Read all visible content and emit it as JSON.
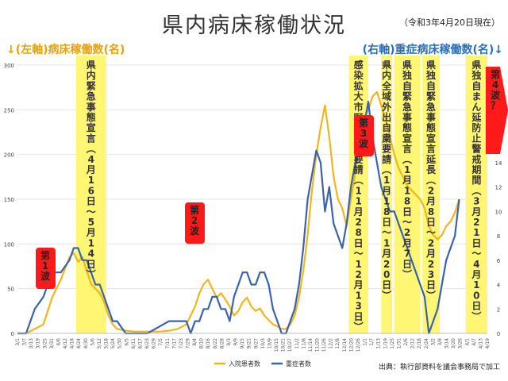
{
  "title": "県内病床稼働状況",
  "as_of": "（令和3年4月20日現在）",
  "left_axis_title": "↓(左軸)病床稼働数(名)",
  "right_axis_title": "(右軸)重症病床稼働数(名)↓",
  "source": "出典：執行部資料を議会事務局で加工",
  "colors": {
    "hospitalized": "#f0b61b",
    "severe": "#3b63ad",
    "band": "#fff56b",
    "wave": "#ff1a1a"
  },
  "chart_data": {
    "type": "line",
    "x_axis_type": "date",
    "x_ticks": [
      "3/1",
      "3/7",
      "3/13",
      "3/19",
      "3/25",
      "3/31",
      "4/6",
      "4/12",
      "4/18",
      "4/24",
      "4/30",
      "5/6",
      "5/12",
      "5/18",
      "5/24",
      "5/30",
      "6/5",
      "6/11",
      "6/17",
      "6/23",
      "6/29",
      "7/5",
      "7/11",
      "7/17",
      "7/23",
      "7/29",
      "8/4",
      "8/10",
      "8/16",
      "8/22",
      "8/28",
      "9/3",
      "9/9",
      "9/15",
      "9/21",
      "9/27",
      "10/3",
      "10/9",
      "10/15",
      "10/21",
      "10/27",
      "11/2",
      "11/8",
      "11/14",
      "11/20",
      "11/26",
      "12/2",
      "12/8",
      "12/14",
      "12/20",
      "12/26",
      "1/1",
      "1/7",
      "1/13",
      "1/19",
      "1/25",
      "1/31",
      "2/6",
      "2/12",
      "2/18",
      "2/24",
      "3/2",
      "3/8",
      "3/14",
      "3/20",
      "3/26",
      "4/1",
      "4/7",
      "4/13",
      "4/19"
    ],
    "left_axis": {
      "ylim": [
        0,
        300
      ],
      "ticks": [
        0,
        50,
        100,
        150,
        200,
        250,
        300
      ]
    },
    "right_axis": {
      "ylim": [
        0,
        22
      ],
      "ticks": [
        0,
        2,
        4,
        6,
        8,
        10,
        12,
        14,
        16,
        18,
        20
      ]
    },
    "series": [
      {
        "name": "入院患者数",
        "axis": "left",
        "values": [
          [
            0,
            0
          ],
          [
            2,
            0
          ],
          [
            4,
            5
          ],
          [
            6,
            10
          ],
          [
            8,
            40
          ],
          [
            10,
            60
          ],
          [
            12,
            85
          ],
          [
            13,
            90
          ],
          [
            14,
            80
          ],
          [
            15,
            85
          ],
          [
            16,
            70
          ],
          [
            17,
            55
          ],
          [
            18,
            50
          ],
          [
            19,
            45
          ],
          [
            20,
            35
          ],
          [
            21,
            20
          ],
          [
            22,
            10
          ],
          [
            23,
            5
          ],
          [
            25,
            3
          ],
          [
            27,
            2
          ],
          [
            29,
            2
          ],
          [
            31,
            2
          ],
          [
            33,
            2
          ],
          [
            35,
            3
          ],
          [
            37,
            5
          ],
          [
            39,
            10
          ],
          [
            40,
            20
          ],
          [
            41,
            30
          ],
          [
            42,
            45
          ],
          [
            43,
            55
          ],
          [
            44,
            60
          ],
          [
            45,
            50
          ],
          [
            46,
            40
          ],
          [
            47,
            45
          ],
          [
            48,
            38
          ],
          [
            49,
            30
          ],
          [
            50,
            20
          ],
          [
            51,
            25
          ],
          [
            52,
            35
          ],
          [
            53,
            40
          ],
          [
            54,
            30
          ],
          [
            55,
            25
          ],
          [
            56,
            28
          ],
          [
            57,
            20
          ],
          [
            58,
            15
          ],
          [
            59,
            10
          ],
          [
            60,
            8
          ],
          [
            61,
            5
          ],
          [
            62,
            5
          ],
          [
            63,
            10
          ],
          [
            64,
            20
          ],
          [
            65,
            40
          ],
          [
            66,
            70
          ],
          [
            67,
            110
          ],
          [
            68,
            160
          ],
          [
            69,
            200
          ],
          [
            70,
            230
          ],
          [
            71,
            255
          ],
          [
            72,
            220
          ],
          [
            73,
            175
          ],
          [
            74,
            150
          ],
          [
            75,
            140
          ],
          [
            76,
            120
          ],
          [
            77,
            150
          ],
          [
            78,
            180
          ],
          [
            79,
            220
          ],
          [
            80,
            240
          ],
          [
            81,
            250
          ],
          [
            82,
            265
          ],
          [
            83,
            270
          ],
          [
            84,
            255
          ],
          [
            85,
            240
          ],
          [
            86,
            220
          ],
          [
            87,
            200
          ],
          [
            88,
            185
          ],
          [
            89,
            175
          ],
          [
            90,
            165
          ],
          [
            91,
            160
          ],
          [
            92,
            155
          ],
          [
            93,
            150
          ],
          [
            94,
            140
          ],
          [
            95,
            120
          ],
          [
            96,
            110
          ],
          [
            97,
            105
          ],
          [
            98,
            110
          ],
          [
            99,
            120
          ],
          [
            100,
            125
          ],
          [
            101,
            135
          ],
          [
            102,
            150
          ]
        ]
      },
      {
        "name": "重症者数",
        "axis": "right",
        "values": [
          [
            0,
            0
          ],
          [
            2,
            0
          ],
          [
            4,
            2
          ],
          [
            6,
            3
          ],
          [
            8,
            5
          ],
          [
            10,
            5
          ],
          [
            12,
            6
          ],
          [
            13,
            7
          ],
          [
            14,
            7
          ],
          [
            15,
            6
          ],
          [
            16,
            6
          ],
          [
            17,
            5
          ],
          [
            18,
            4
          ],
          [
            19,
            4
          ],
          [
            20,
            3
          ],
          [
            21,
            2
          ],
          [
            22,
            1
          ],
          [
            23,
            1
          ],
          [
            25,
            0
          ],
          [
            30,
            0
          ],
          [
            35,
            1
          ],
          [
            37,
            1
          ],
          [
            39,
            1
          ],
          [
            40,
            0
          ],
          [
            41,
            1
          ],
          [
            42,
            1
          ],
          [
            43,
            2
          ],
          [
            44,
            2
          ],
          [
            45,
            3
          ],
          [
            46,
            3
          ],
          [
            47,
            2
          ],
          [
            48,
            2
          ],
          [
            49,
            1
          ],
          [
            50,
            3
          ],
          [
            51,
            4
          ],
          [
            52,
            5
          ],
          [
            53,
            5
          ],
          [
            54,
            4
          ],
          [
            55,
            4
          ],
          [
            56,
            5
          ],
          [
            57,
            5
          ],
          [
            58,
            4
          ],
          [
            59,
            2
          ],
          [
            60,
            1
          ],
          [
            61,
            0
          ],
          [
            62,
            0
          ],
          [
            63,
            1
          ],
          [
            64,
            2
          ],
          [
            65,
            4
          ],
          [
            66,
            7
          ],
          [
            67,
            11
          ],
          [
            68,
            13
          ],
          [
            69,
            15
          ],
          [
            70,
            14
          ],
          [
            71,
            10
          ],
          [
            72,
            12
          ],
          [
            73,
            9
          ],
          [
            74,
            8
          ],
          [
            75,
            7
          ],
          [
            76,
            9
          ],
          [
            77,
            12
          ],
          [
            78,
            14
          ],
          [
            79,
            16
          ],
          [
            80,
            17
          ],
          [
            81,
            19
          ],
          [
            82,
            16
          ],
          [
            83,
            14
          ],
          [
            84,
            12
          ],
          [
            85,
            11
          ],
          [
            86,
            10
          ],
          [
            87,
            10
          ],
          [
            88,
            9
          ],
          [
            89,
            8
          ],
          [
            90,
            7
          ],
          [
            91,
            6
          ],
          [
            92,
            5
          ],
          [
            93,
            4
          ],
          [
            94,
            3
          ],
          [
            95,
            0
          ],
          [
            96,
            1
          ],
          [
            97,
            2
          ],
          [
            98,
            4
          ],
          [
            99,
            6
          ],
          [
            100,
            7
          ],
          [
            101,
            8
          ],
          [
            102,
            11
          ]
        ]
      }
    ],
    "legend": [
      "入院患者数",
      "重症者数"
    ],
    "legend_position": "bottom",
    "annotations": {
      "bands": [
        {
          "text": "県内緊急事態宣言",
          "period": "（4月16日～5月14日）"
        },
        {
          "text": "感染拡大市町村自粛要請",
          "period": "（11月28日～12月13日）"
        },
        {
          "text": "県内全域外出自粛要請",
          "period": "（1月18日～1月20日）"
        },
        {
          "text": "県独自緊急事態宣言",
          "period": "（1月18日～2月7日）"
        },
        {
          "text": "県独自緊急事態宣言延長",
          "period": "（2月8日～2月23日）"
        },
        {
          "text": "県独自まん延防止警戒期間",
          "period": "（3月21日～4月10日）"
        }
      ],
      "waves": [
        "第1波",
        "第2波",
        "第3波",
        "第4波？"
      ]
    }
  }
}
